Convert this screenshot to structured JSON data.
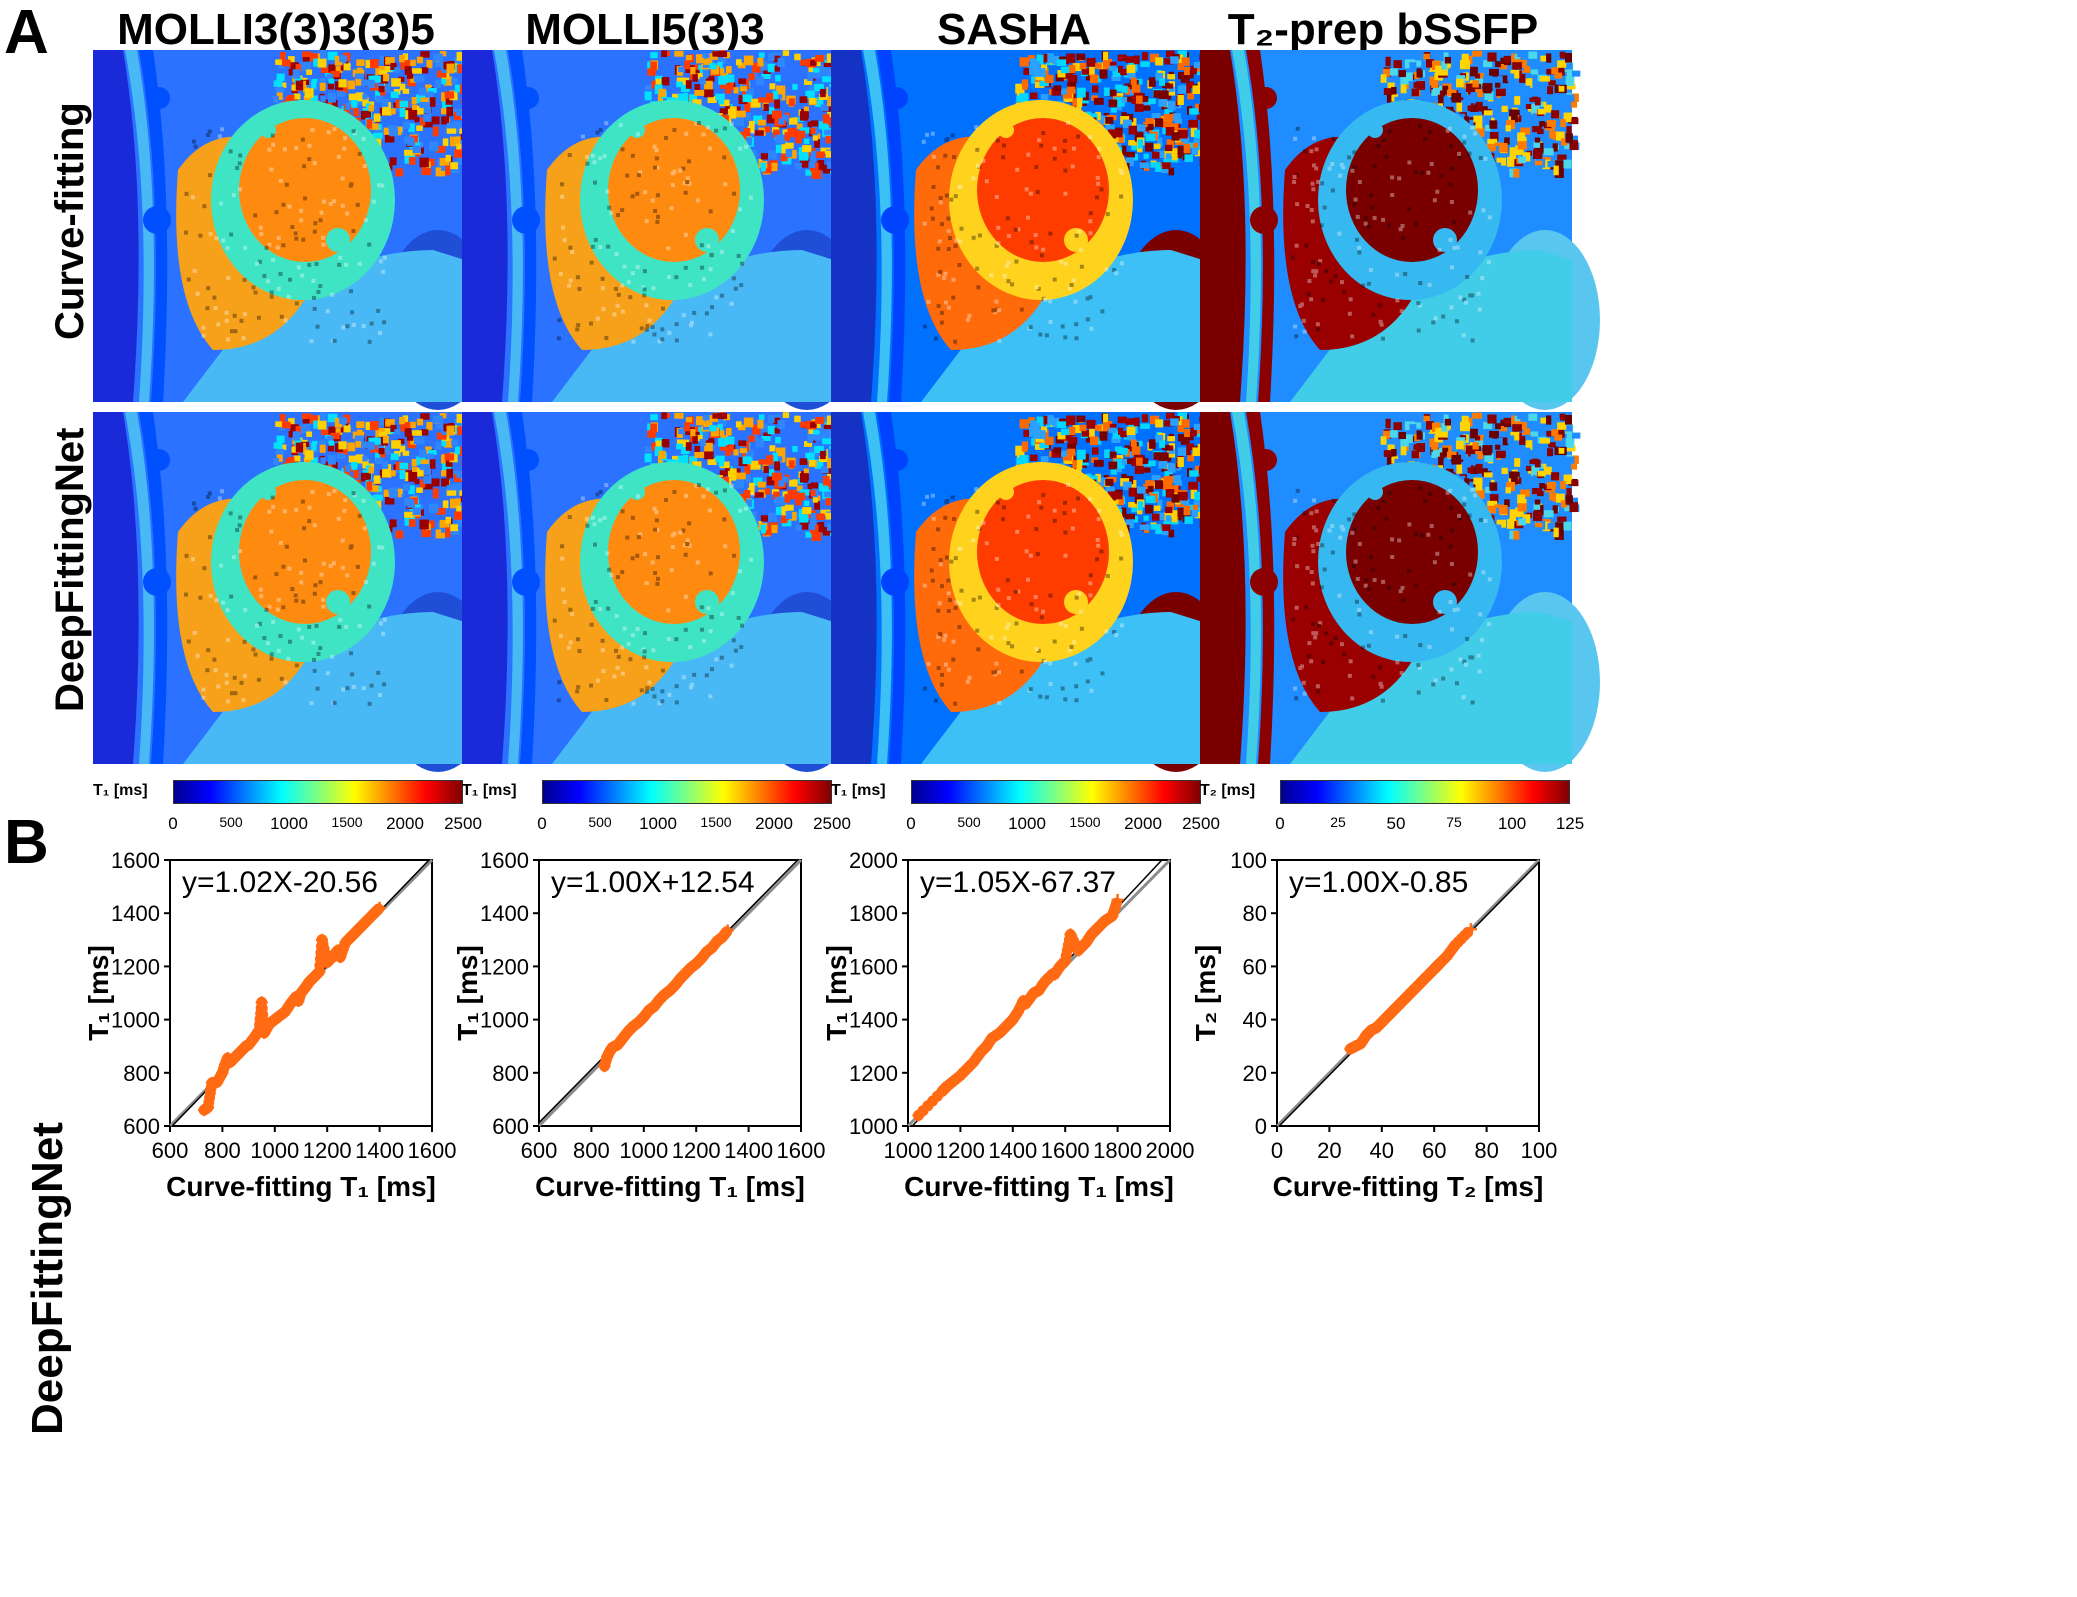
{
  "panels": {
    "a": "A",
    "b": "B"
  },
  "columns": [
    "MOLLI3(3)3(3)5",
    "MOLLI5(3)3",
    "SASHA",
    "T₂-prep bSSFP"
  ],
  "rows": [
    "Curve-fitting",
    "DeepFittingNet"
  ],
  "map_styles": [
    "molli",
    "molli",
    "sasha",
    "t2"
  ],
  "colorbars": [
    {
      "unit": "T₁ [ms]",
      "ticks": [
        "0",
        "500",
        "1000",
        "1500",
        "2000",
        "2500"
      ]
    },
    {
      "unit": "T₁ [ms]",
      "ticks": [
        "0",
        "500",
        "1000",
        "1500",
        "2000",
        "2500"
      ]
    },
    {
      "unit": "T₁ [ms]",
      "ticks": [
        "0",
        "500",
        "1000",
        "1500",
        "2000",
        "2500"
      ]
    },
    {
      "unit": "T₂ [ms]",
      "ticks": [
        "0",
        "25",
        "50",
        "75",
        "100",
        "125"
      ]
    }
  ],
  "colors": {
    "scatter": "#ff6a13",
    "identity": "#8c8c8c",
    "fit": "#000000",
    "jet": [
      "#00008f",
      "#0000ff",
      "#0080ff",
      "#00ffff",
      "#80ff80",
      "#ffff00",
      "#ff8000",
      "#ff0000",
      "#800000"
    ]
  },
  "shared_ylabel": "DeepFittingNet",
  "chart_data": [
    {
      "type": "scatter",
      "equation": "y=1.02X-20.56",
      "xlabel": "Curve-fitting T₁ [ms]",
      "ylabel": "T₁ [ms]",
      "xlim": [
        600,
        1600
      ],
      "ylim": [
        600,
        1600
      ],
      "xticks": [
        600,
        800,
        1000,
        1200,
        1400,
        1600
      ],
      "yticks": [
        600,
        800,
        1000,
        1200,
        1400,
        1600
      ],
      "fit": {
        "slope": 1.02,
        "intercept": -20.56
      },
      "points": [
        [
          730,
          660
        ],
        [
          745,
          670
        ],
        [
          760,
          762
        ],
        [
          780,
          765
        ],
        [
          800,
          800
        ],
        [
          810,
          830
        ],
        [
          820,
          855
        ],
        [
          830,
          840
        ],
        [
          850,
          860
        ],
        [
          870,
          880
        ],
        [
          890,
          900
        ],
        [
          900,
          905
        ],
        [
          920,
          930
        ],
        [
          940,
          960
        ],
        [
          950,
          1065
        ],
        [
          960,
          950
        ],
        [
          980,
          985
        ],
        [
          1000,
          1000
        ],
        [
          1020,
          1015
        ],
        [
          1040,
          1030
        ],
        [
          1060,
          1060
        ],
        [
          1080,
          1085
        ],
        [
          1090,
          1070
        ],
        [
          1100,
          1100
        ],
        [
          1120,
          1125
        ],
        [
          1130,
          1140
        ],
        [
          1150,
          1160
        ],
        [
          1170,
          1180
        ],
        [
          1180,
          1300
        ],
        [
          1200,
          1215
        ],
        [
          1220,
          1235
        ],
        [
          1240,
          1260
        ],
        [
          1250,
          1235
        ],
        [
          1270,
          1290
        ],
        [
          1290,
          1310
        ],
        [
          1310,
          1330
        ],
        [
          1330,
          1350
        ],
        [
          1350,
          1370
        ],
        [
          1380,
          1400
        ],
        [
          1400,
          1420
        ]
      ]
    },
    {
      "type": "scatter",
      "equation": "y=1.00X+12.54",
      "xlabel": "Curve-fitting T₁ [ms]",
      "ylabel": "T₁ [ms]",
      "xlim": [
        600,
        1600
      ],
      "ylim": [
        600,
        1600
      ],
      "xticks": [
        600,
        800,
        1000,
        1200,
        1400,
        1600
      ],
      "yticks": [
        600,
        800,
        1000,
        1200,
        1400,
        1600
      ],
      "fit": {
        "slope": 1.0,
        "intercept": 12.54
      },
      "points": [
        [
          850,
          825
        ],
        [
          860,
          860
        ],
        [
          870,
          880
        ],
        [
          880,
          895
        ],
        [
          900,
          905
        ],
        [
          920,
          930
        ],
        [
          940,
          955
        ],
        [
          960,
          975
        ],
        [
          980,
          990
        ],
        [
          1000,
          1010
        ],
        [
          1020,
          1035
        ],
        [
          1040,
          1050
        ],
        [
          1060,
          1075
        ],
        [
          1080,
          1095
        ],
        [
          1100,
          1110
        ],
        [
          1120,
          1130
        ],
        [
          1140,
          1155
        ],
        [
          1160,
          1175
        ],
        [
          1180,
          1195
        ],
        [
          1200,
          1210
        ],
        [
          1220,
          1230
        ],
        [
          1240,
          1255
        ],
        [
          1260,
          1270
        ],
        [
          1280,
          1295
        ],
        [
          1300,
          1310
        ],
        [
          1320,
          1335
        ]
      ]
    },
    {
      "type": "scatter",
      "equation": "y=1.05X-67.37",
      "xlabel": "Curve-fitting T₁ [ms]",
      "ylabel": "T₁ [ms]",
      "xlim": [
        1000,
        2000
      ],
      "ylim": [
        1000,
        2000
      ],
      "xticks": [
        1000,
        1200,
        1400,
        1600,
        1800,
        2000
      ],
      "yticks": [
        1000,
        1200,
        1400,
        1600,
        1800,
        2000
      ],
      "fit": {
        "slope": 1.05,
        "intercept": -67.37
      },
      "points": [
        [
          1040,
          1040
        ],
        [
          1130,
          1130
        ],
        [
          1140,
          1140
        ],
        [
          1150,
          1150
        ],
        [
          1200,
          1190
        ],
        [
          1250,
          1240
        ],
        [
          1280,
          1280
        ],
        [
          1300,
          1300
        ],
        [
          1320,
          1330
        ],
        [
          1350,
          1350
        ],
        [
          1380,
          1380
        ],
        [
          1400,
          1400
        ],
        [
          1420,
          1430
        ],
        [
          1440,
          1470
        ],
        [
          1450,
          1460
        ],
        [
          1480,
          1500
        ],
        [
          1500,
          1510
        ],
        [
          1520,
          1540
        ],
        [
          1550,
          1570
        ],
        [
          1560,
          1570
        ],
        [
          1580,
          1600
        ],
        [
          1600,
          1620
        ],
        [
          1620,
          1720
        ],
        [
          1650,
          1660
        ],
        [
          1680,
          1690
        ],
        [
          1700,
          1720
        ],
        [
          1720,
          1740
        ],
        [
          1750,
          1770
        ],
        [
          1780,
          1790
        ],
        [
          1800,
          1850
        ]
      ]
    },
    {
      "type": "scatter",
      "equation": "y=1.00X-0.85",
      "xlabel": "Curve-fitting T₂ [ms]",
      "ylabel": "T₂ [ms]",
      "xlim": [
        0,
        100
      ],
      "ylim": [
        0,
        100
      ],
      "xticks": [
        0,
        20,
        40,
        60,
        80,
        100
      ],
      "yticks": [
        0,
        20,
        40,
        60,
        80,
        100
      ],
      "fit": {
        "slope": 1.0,
        "intercept": -0.85
      },
      "points": [
        [
          28,
          29
        ],
        [
          30,
          30
        ],
        [
          32,
          31
        ],
        [
          34,
          34
        ],
        [
          35,
          35
        ],
        [
          36,
          36
        ],
        [
          38,
          37
        ],
        [
          40,
          39
        ],
        [
          42,
          41
        ],
        [
          44,
          43
        ],
        [
          46,
          45
        ],
        [
          48,
          47
        ],
        [
          50,
          49
        ],
        [
          52,
          51
        ],
        [
          54,
          53
        ],
        [
          56,
          55
        ],
        [
          58,
          57
        ],
        [
          60,
          59
        ],
        [
          61,
          60
        ],
        [
          62,
          61
        ],
        [
          65,
          64
        ],
        [
          68,
          68
        ],
        [
          74,
          74
        ]
      ]
    }
  ]
}
